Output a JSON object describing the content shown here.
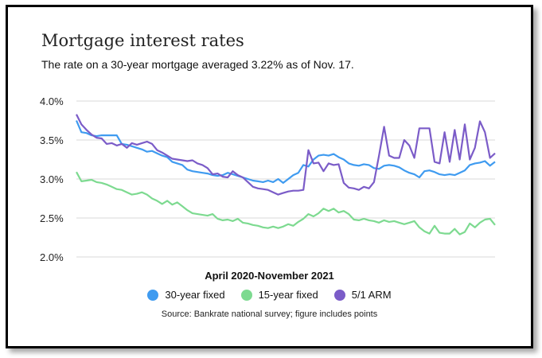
{
  "chart_data": {
    "type": "line",
    "title": "Mortgage interest rates",
    "subtitle": "The rate on a 30-year mortgage averaged 3.22% as of Nov. 17.",
    "xlabel": "April 2020-November 2021",
    "ylabel": "",
    "source": "Source: Bankrate national survey; figure includes points",
    "ylim": [
      2.0,
      4.0
    ],
    "yticks": [
      "4.0%",
      "3.5%",
      "3.0%",
      "2.5%",
      "2.0%"
    ],
    "ytick_values": [
      4.0,
      3.5,
      3.0,
      2.5,
      2.0
    ],
    "grid": true,
    "legend_position": "bottom",
    "x": [
      1,
      2,
      3,
      4,
      5,
      6,
      7,
      8,
      9,
      10,
      11,
      12,
      13,
      14,
      15,
      16,
      17,
      18,
      19,
      20,
      21,
      22,
      23,
      24,
      25,
      26,
      27,
      28,
      29,
      30,
      31,
      32,
      33,
      34,
      35,
      36,
      37,
      38,
      39,
      40,
      41,
      42,
      43,
      44,
      45,
      46,
      47,
      48,
      49,
      50,
      51,
      52,
      53,
      54,
      55,
      56,
      57,
      58,
      59,
      60,
      61,
      62,
      63,
      64,
      65,
      66,
      67,
      68,
      69,
      70,
      71,
      72,
      73,
      74,
      75,
      76,
      77,
      78,
      79,
      80,
      81,
      82,
      83,
      84
    ],
    "series": [
      {
        "name": "30-year fixed",
        "color": "#3f9bf0",
        "values": [
          3.75,
          3.6,
          3.59,
          3.56,
          3.55,
          3.56,
          3.56,
          3.56,
          3.56,
          3.45,
          3.44,
          3.42,
          3.4,
          3.38,
          3.35,
          3.36,
          3.33,
          3.3,
          3.28,
          3.22,
          3.2,
          3.18,
          3.12,
          3.1,
          3.09,
          3.08,
          3.07,
          3.05,
          3.04,
          3.05,
          3.08,
          3.06,
          3.04,
          3.02,
          3.0,
          2.98,
          2.97,
          2.96,
          2.98,
          2.96,
          3.0,
          2.95,
          3.0,
          3.05,
          3.08,
          3.18,
          3.16,
          3.25,
          3.3,
          3.31,
          3.3,
          3.32,
          3.28,
          3.25,
          3.2,
          3.18,
          3.17,
          3.19,
          3.18,
          3.14,
          3.13,
          3.17,
          3.18,
          3.17,
          3.15,
          3.11,
          3.08,
          3.06,
          3.02,
          3.1,
          3.11,
          3.09,
          3.06,
          3.05,
          3.06,
          3.05,
          3.08,
          3.11,
          3.18,
          3.2,
          3.21,
          3.23,
          3.17,
          3.22
        ]
      },
      {
        "name": "15-year fixed",
        "color": "#7dda90",
        "values": [
          3.09,
          2.97,
          2.98,
          2.99,
          2.96,
          2.95,
          2.93,
          2.9,
          2.87,
          2.86,
          2.83,
          2.8,
          2.81,
          2.83,
          2.8,
          2.75,
          2.72,
          2.68,
          2.72,
          2.67,
          2.7,
          2.65,
          2.6,
          2.56,
          2.55,
          2.54,
          2.53,
          2.55,
          2.49,
          2.47,
          2.48,
          2.46,
          2.49,
          2.44,
          2.43,
          2.41,
          2.4,
          2.38,
          2.37,
          2.39,
          2.37,
          2.39,
          2.42,
          2.4,
          2.45,
          2.49,
          2.55,
          2.52,
          2.56,
          2.62,
          2.59,
          2.62,
          2.57,
          2.59,
          2.55,
          2.48,
          2.47,
          2.49,
          2.47,
          2.46,
          2.44,
          2.47,
          2.45,
          2.46,
          2.44,
          2.42,
          2.44,
          2.46,
          2.38,
          2.33,
          2.3,
          2.4,
          2.31,
          2.3,
          2.3,
          2.36,
          2.29,
          2.32,
          2.43,
          2.38,
          2.44,
          2.48,
          2.49,
          2.41
        ]
      },
      {
        "name": "5/1 ARM",
        "color": "#7b5cc8",
        "values": [
          3.83,
          3.7,
          3.63,
          3.57,
          3.53,
          3.52,
          3.45,
          3.46,
          3.43,
          3.45,
          3.4,
          3.46,
          3.44,
          3.46,
          3.48,
          3.45,
          3.37,
          3.34,
          3.3,
          3.26,
          3.25,
          3.24,
          3.23,
          3.24,
          3.2,
          3.18,
          3.14,
          3.06,
          3.07,
          3.03,
          3.02,
          3.1,
          3.05,
          3.02,
          2.96,
          2.9,
          2.88,
          2.87,
          2.86,
          2.83,
          2.8,
          2.82,
          2.84,
          2.85,
          2.85,
          2.86,
          3.37,
          3.2,
          3.21,
          3.1,
          3.2,
          3.18,
          3.19,
          2.95,
          2.89,
          2.88,
          2.86,
          2.9,
          2.88,
          2.96,
          3.3,
          3.67,
          3.3,
          3.27,
          3.27,
          3.5,
          3.43,
          3.27,
          3.65,
          3.65,
          3.65,
          3.22,
          3.2,
          3.6,
          3.22,
          3.63,
          3.25,
          3.7,
          3.25,
          3.4,
          3.74,
          3.6,
          3.27,
          3.33
        ]
      }
    ]
  }
}
